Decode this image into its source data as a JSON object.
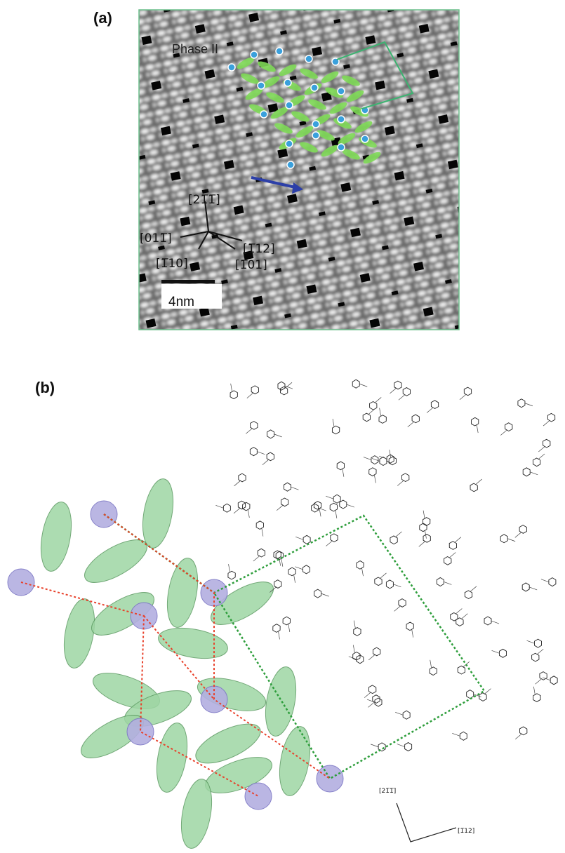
{
  "figure": {
    "panels": [
      {
        "label": "(a)",
        "phase_label": "Phase II",
        "directions": [
          "[21̅1̅]",
          "[011̅]",
          "[1̅10]",
          "[1̅12]",
          "[1̅01]"
        ],
        "scale_bar": "4nm"
      },
      {
        "label": "(b)",
        "directions": [
          "[21̅1̅]",
          "[1̅12]"
        ]
      }
    ]
  }
}
